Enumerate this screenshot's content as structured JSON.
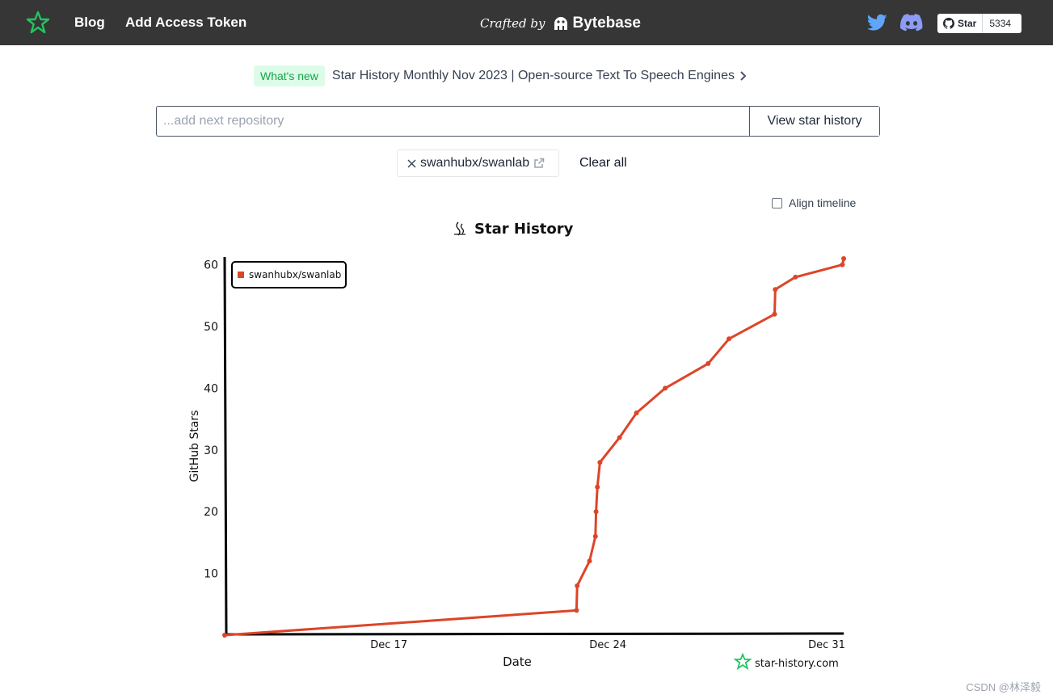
{
  "header": {
    "blog": "Blog",
    "add_token": "Add Access Token",
    "crafted_by": "Crafted by",
    "brand": "Bytebase",
    "github_star_label": "Star",
    "github_star_count": "5334"
  },
  "news": {
    "badge": "What's new",
    "text": "Star History Monthly Nov 2023 | Open-source Text To Speech Engines"
  },
  "search": {
    "placeholder": "...add next repository",
    "button": "View star history"
  },
  "repos": [
    {
      "name": "swanhubx/swanlab"
    }
  ],
  "clear_all": "Clear all",
  "align_timeline": {
    "label": "Align timeline",
    "checked": false
  },
  "colors": {
    "series": "#dd4528",
    "nav_bg": "#363636",
    "logo_green": "#22c55e"
  },
  "chart_data": {
    "type": "line",
    "title": "Star History",
    "xlabel": "Date",
    "ylabel": "GitHub Stars",
    "x_ticks": [
      "Dec 17",
      "Dec 24",
      "Dec 31"
    ],
    "y_ticks": [
      10,
      20,
      30,
      40,
      50,
      60
    ],
    "xlim": [
      "2023-12-12",
      "2023-12-31"
    ],
    "ylim": [
      0,
      61
    ],
    "legend_position": "top-left",
    "watermark": "star-history.com",
    "series": [
      {
        "name": "swanhubx/swanlab",
        "points": [
          [
            "2023-12-11 18:00",
            0
          ],
          [
            "2023-12-23 00:00",
            4
          ],
          [
            "2023-12-23 00:30",
            8
          ],
          [
            "2023-12-23 10:00",
            12
          ],
          [
            "2023-12-23 14:30",
            16
          ],
          [
            "2023-12-23 15:00",
            20
          ],
          [
            "2023-12-23 16:00",
            24
          ],
          [
            "2023-12-23 18:00",
            28
          ],
          [
            "2023-12-24 09:00",
            32
          ],
          [
            "2023-12-24 22:00",
            36
          ],
          [
            "2023-12-25 20:00",
            40
          ],
          [
            "2023-12-27 05:00",
            44
          ],
          [
            "2023-12-27 21:00",
            48
          ],
          [
            "2023-12-29 08:00",
            52
          ],
          [
            "2023-12-29 08:30",
            56
          ],
          [
            "2023-12-30 00:00",
            58
          ],
          [
            "2023-12-31 12:00",
            60
          ],
          [
            "2023-12-31 13:00",
            61
          ]
        ]
      }
    ]
  }
}
